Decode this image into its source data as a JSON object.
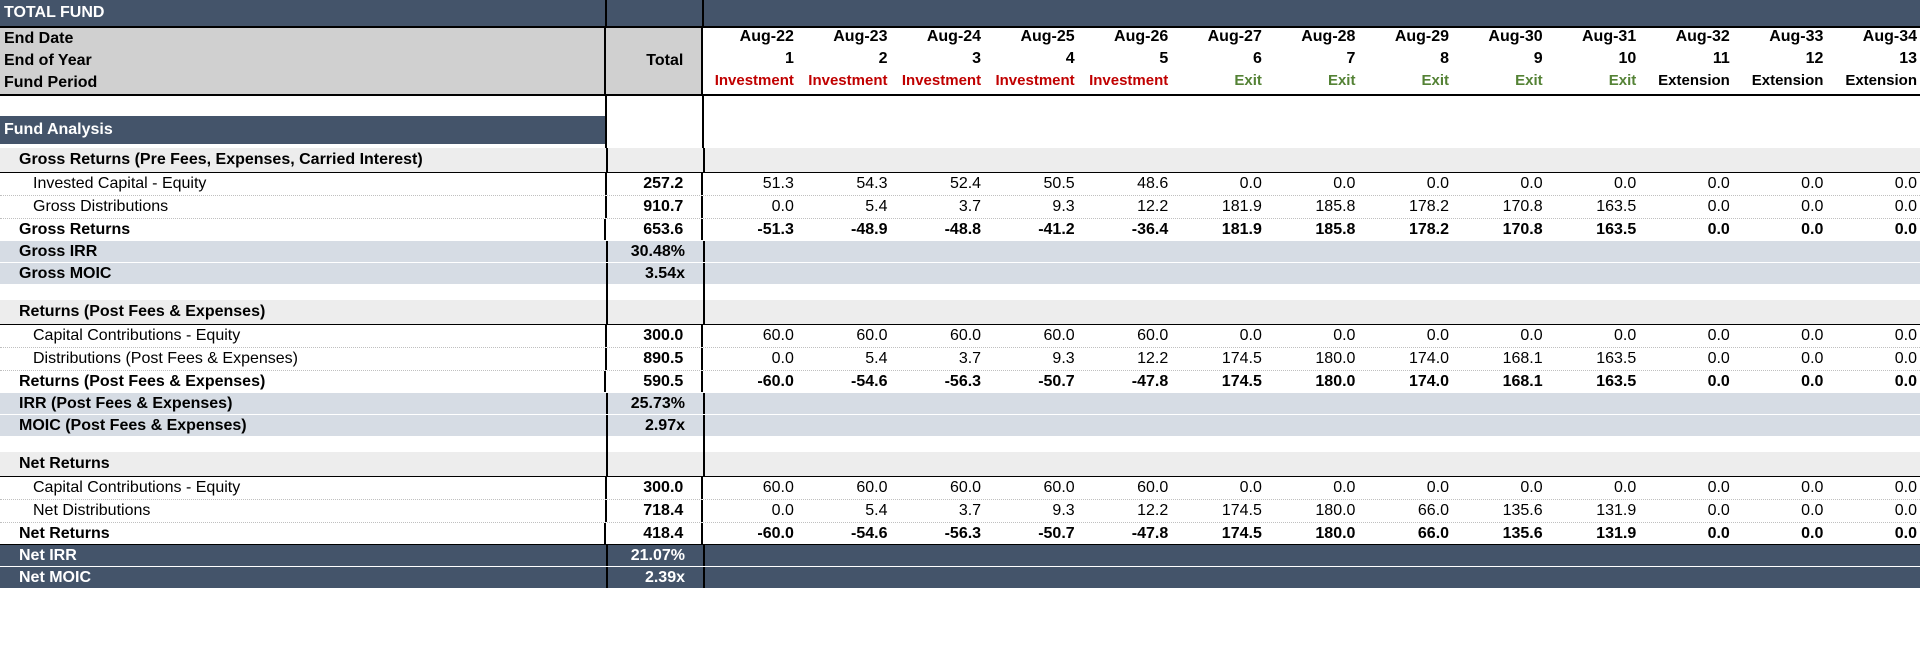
{
  "title": "TOTAL FUND",
  "header": {
    "end_date_label": "End Date",
    "end_of_year_label": "End of Year",
    "fund_period_label": "Fund Period",
    "total_label": "Total",
    "dates": [
      "Aug-22",
      "Aug-23",
      "Aug-24",
      "Aug-25",
      "Aug-26",
      "Aug-27",
      "Aug-28",
      "Aug-29",
      "Aug-30",
      "Aug-31",
      "Aug-32",
      "Aug-33",
      "Aug-34"
    ],
    "years": [
      "1",
      "2",
      "3",
      "4",
      "5",
      "6",
      "7",
      "8",
      "9",
      "10",
      "11",
      "12",
      "13"
    ],
    "periods": [
      "Investment",
      "Investment",
      "Investment",
      "Investment",
      "Investment",
      "Exit",
      "Exit",
      "Exit",
      "Exit",
      "Exit",
      "Extension",
      "Extension",
      "Extension"
    ]
  },
  "fund_analysis_label": "Fund Analysis",
  "gross": {
    "section_label": "Gross Returns (Pre Fees, Expenses, Carried Interest)",
    "invested": {
      "label": "Invested Capital - Equity",
      "total": "257.2",
      "values": [
        "51.3",
        "54.3",
        "52.4",
        "50.5",
        "48.6",
        "0.0",
        "0.0",
        "0.0",
        "0.0",
        "0.0",
        "0.0",
        "0.0",
        "0.0"
      ]
    },
    "distributions": {
      "label": "Gross Distributions",
      "total": "910.7",
      "values": [
        "0.0",
        "5.4",
        "3.7",
        "9.3",
        "12.2",
        "181.9",
        "185.8",
        "178.2",
        "170.8",
        "163.5",
        "0.0",
        "0.0",
        "0.0"
      ]
    },
    "returns": {
      "label": "Gross Returns",
      "total": "653.6",
      "values": [
        "-51.3",
        "-48.9",
        "-48.8",
        "-41.2",
        "-36.4",
        "181.9",
        "185.8",
        "178.2",
        "170.8",
        "163.5",
        "0.0",
        "0.0",
        "0.0"
      ]
    },
    "irr": {
      "label": "Gross IRR",
      "total": "30.48%"
    },
    "moic": {
      "label": "Gross MOIC",
      "total": "3.54x"
    }
  },
  "post": {
    "section_label": "Returns (Post Fees & Expenses)",
    "contrib": {
      "label": "Capital Contributions - Equity",
      "total": "300.0",
      "values": [
        "60.0",
        "60.0",
        "60.0",
        "60.0",
        "60.0",
        "0.0",
        "0.0",
        "0.0",
        "0.0",
        "0.0",
        "0.0",
        "0.0",
        "0.0"
      ]
    },
    "distributions": {
      "label": "Distributions (Post Fees & Expenses)",
      "total": "890.5",
      "values": [
        "0.0",
        "5.4",
        "3.7",
        "9.3",
        "12.2",
        "174.5",
        "180.0",
        "174.0",
        "168.1",
        "163.5",
        "0.0",
        "0.0",
        "0.0"
      ]
    },
    "returns": {
      "label": "Returns (Post Fees & Expenses)",
      "total": "590.5",
      "values": [
        "-60.0",
        "-54.6",
        "-56.3",
        "-50.7",
        "-47.8",
        "174.5",
        "180.0",
        "174.0",
        "168.1",
        "163.5",
        "0.0",
        "0.0",
        "0.0"
      ]
    },
    "irr": {
      "label": "IRR (Post Fees & Expenses)",
      "total": "25.73%"
    },
    "moic": {
      "label": "MOIC (Post Fees & Expenses)",
      "total": "2.97x"
    }
  },
  "net": {
    "section_label": "Net Returns",
    "contrib": {
      "label": "Capital Contributions - Equity",
      "total": "300.0",
      "values": [
        "60.0",
        "60.0",
        "60.0",
        "60.0",
        "60.0",
        "0.0",
        "0.0",
        "0.0",
        "0.0",
        "0.0",
        "0.0",
        "0.0",
        "0.0"
      ]
    },
    "distributions": {
      "label": "Net Distributions",
      "total": "718.4",
      "values": [
        "0.0",
        "5.4",
        "3.7",
        "9.3",
        "12.2",
        "174.5",
        "180.0",
        "66.0",
        "135.6",
        "131.9",
        "0.0",
        "0.0",
        "0.0"
      ]
    },
    "returns": {
      "label": "Net Returns",
      "total": "418.4",
      "values": [
        "-60.0",
        "-54.6",
        "-56.3",
        "-50.7",
        "-47.8",
        "174.5",
        "180.0",
        "66.0",
        "135.6",
        "131.9",
        "0.0",
        "0.0",
        "0.0"
      ]
    },
    "irr": {
      "label": "Net IRR",
      "total": "21.07%"
    },
    "moic": {
      "label": "Net MOIC",
      "total": "2.39x"
    }
  },
  "colors": {
    "navy": "#44546a",
    "header_grey": "#d0d0d0",
    "band": "#d6dce4",
    "investment": "#c00000",
    "exit": "#548235"
  }
}
